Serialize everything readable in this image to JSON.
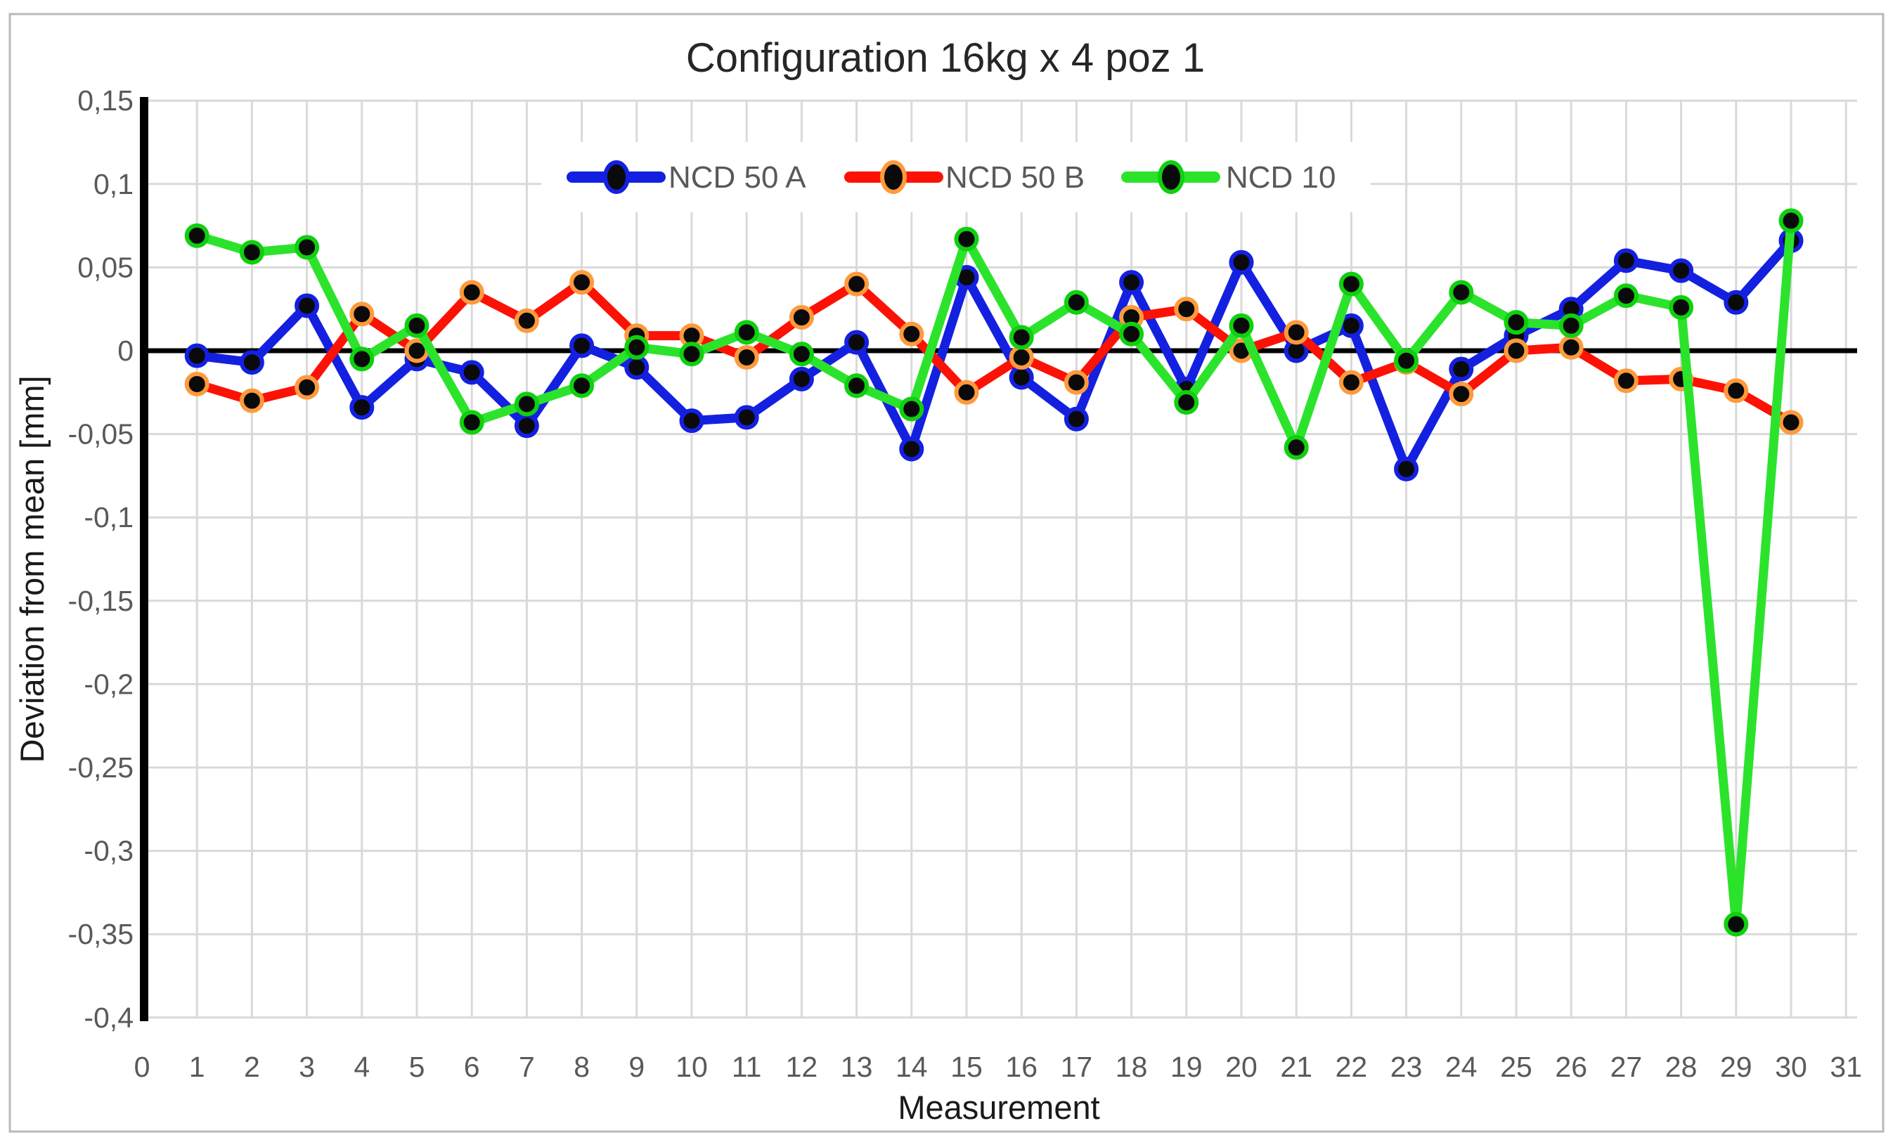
{
  "figure": {
    "border_color": "#b9b9b9",
    "background": "#ffffff"
  },
  "chart_data": {
    "type": "line",
    "title": "Configuration 16kg x 4 poz 1",
    "xlabel": "Measurement",
    "ylabel": "Deviation from mean [mm]",
    "xlim": [
      0,
      31
    ],
    "ylim": [
      -0.4,
      0.15
    ],
    "grid": true,
    "legend_position": "top-center-inside",
    "x_ticks": [
      0,
      1,
      2,
      3,
      4,
      5,
      6,
      7,
      8,
      9,
      10,
      11,
      12,
      13,
      14,
      15,
      16,
      17,
      18,
      19,
      20,
      21,
      22,
      23,
      24,
      25,
      26,
      27,
      28,
      29,
      30,
      31
    ],
    "y_ticks": {
      "labels": [
        "0,15",
        "0,1",
        "0,05",
        "0",
        "-0,05",
        "-0,1",
        "-0,15",
        "-0,2",
        "-0,25",
        "-0,3",
        "-0,35",
        "-0,4"
      ],
      "values": [
        0.15,
        0.1,
        0.05,
        0,
        -0.05,
        -0.1,
        -0.15,
        -0.2,
        -0.25,
        -0.3,
        -0.35,
        -0.4
      ]
    },
    "x": [
      1,
      2,
      3,
      4,
      5,
      6,
      7,
      8,
      9,
      10,
      11,
      12,
      13,
      14,
      15,
      16,
      17,
      18,
      19,
      20,
      21,
      22,
      23,
      24,
      25,
      26,
      27,
      28,
      29,
      30
    ],
    "series": [
      {
        "name": "NCD 50 A",
        "color": "#1420e0",
        "marker_ring": "#1420e0",
        "values": [
          -0.003,
          -0.007,
          0.027,
          -0.034,
          -0.005,
          -0.013,
          -0.045,
          0.003,
          -0.01,
          -0.042,
          -0.04,
          -0.017,
          0.005,
          -0.059,
          0.044,
          -0.016,
          -0.041,
          0.041,
          -0.023,
          0.053,
          0.0,
          0.015,
          -0.071,
          -0.011,
          0.009,
          0.025,
          0.054,
          0.048,
          0.029,
          0.066
        ]
      },
      {
        "name": "NCD 50 B",
        "color": "#fc1205",
        "marker_ring": "#ff9a3c",
        "values": [
          -0.02,
          -0.03,
          -0.022,
          0.022,
          0.0,
          0.035,
          0.018,
          0.041,
          0.009,
          0.009,
          -0.004,
          0.02,
          0.04,
          0.01,
          -0.025,
          -0.004,
          -0.019,
          0.02,
          0.025,
          0.0,
          0.011,
          -0.019,
          -0.007,
          -0.026,
          0.0,
          0.002,
          -0.018,
          -0.017,
          -0.024,
          -0.043
        ]
      },
      {
        "name": "NCD 10",
        "color": "#2ce32c",
        "marker_ring": "#0fd00f",
        "values": [
          0.069,
          0.059,
          0.062,
          -0.005,
          0.015,
          -0.043,
          -0.032,
          -0.021,
          0.002,
          -0.002,
          0.011,
          -0.002,
          -0.021,
          -0.035,
          0.067,
          0.008,
          0.029,
          0.01,
          -0.031,
          0.015,
          -0.058,
          0.04,
          -0.006,
          0.035,
          0.017,
          0.015,
          0.033,
          0.026,
          -0.344,
          0.078
        ]
      }
    ],
    "colors": {
      "gridline": "#d9d9d9",
      "zero_line": "#000000",
      "axis_line": "#000000",
      "marker_fill": "#0a0a0a",
      "tick_text": "#595959",
      "legend_text": "#595959",
      "legend_background": "#ffffff"
    }
  }
}
